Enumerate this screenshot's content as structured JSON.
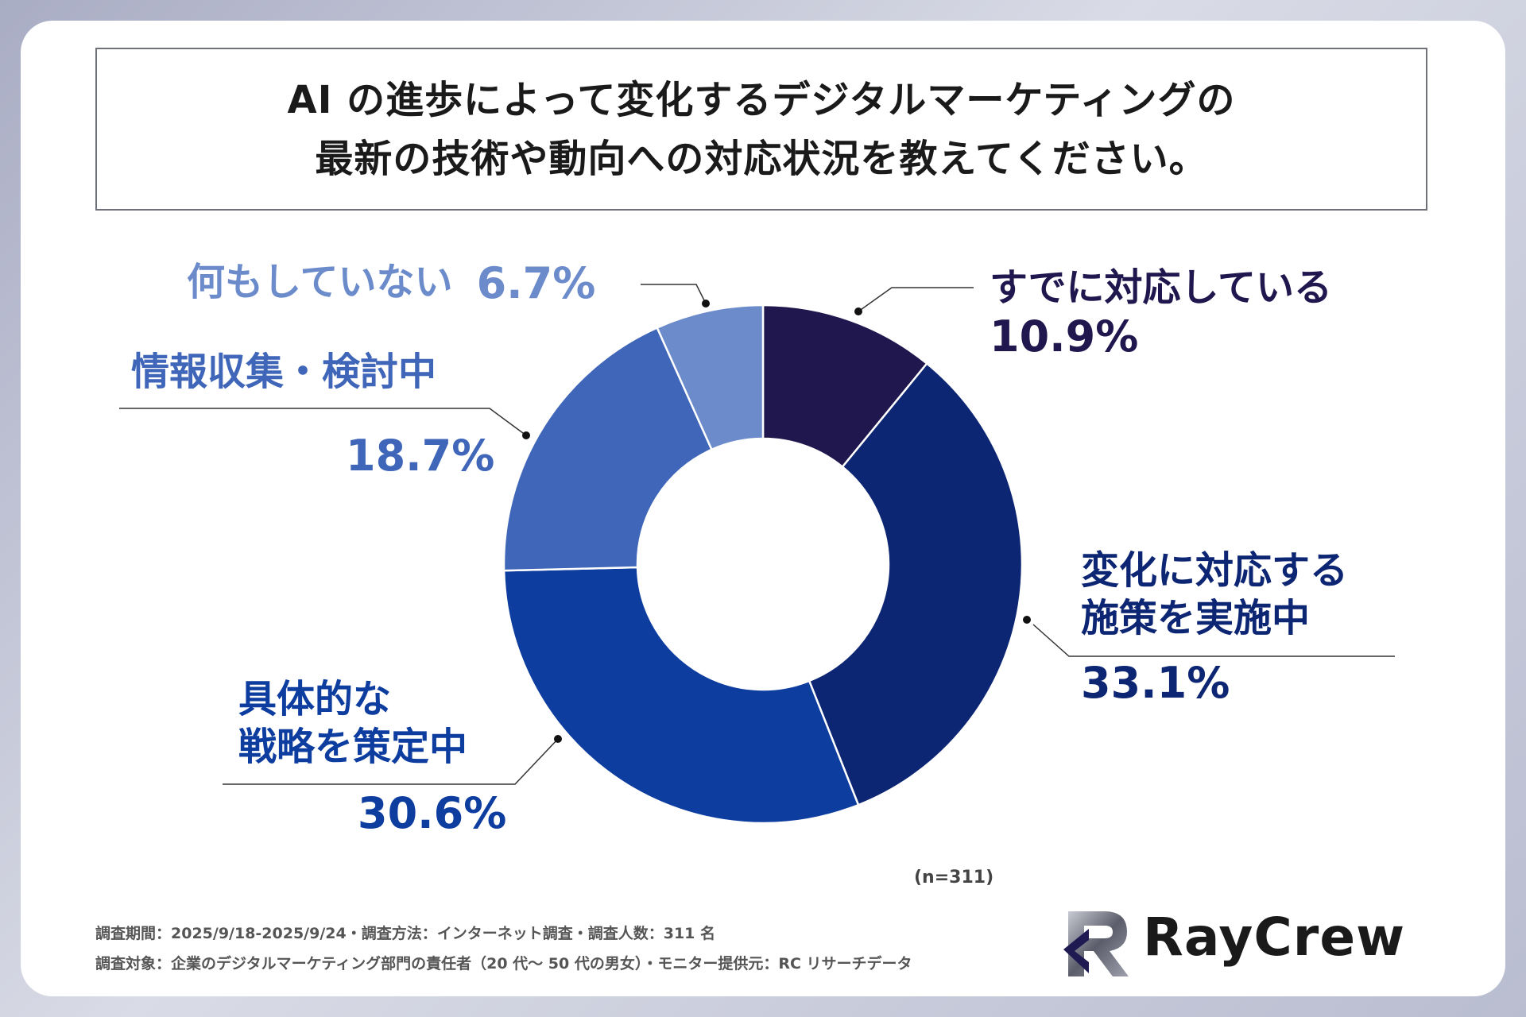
{
  "title": {
    "line1": "AI の進歩によって変化するデジタルマーケティングの",
    "line2": "最新の技術や動向への対応状況を教えてください。"
  },
  "chart_data": {
    "type": "pie",
    "variant": "donut",
    "categories": [
      "すでに対応している",
      "変化に対応する施策を実施中",
      "具体的な戦略を策定中",
      "情報収集・検討中",
      "何もしていない"
    ],
    "values": [
      10.9,
      33.1,
      30.6,
      18.7,
      6.7
    ],
    "labels_display": [
      {
        "lines": [
          "すでに対応している"
        ],
        "pct": "10.9%"
      },
      {
        "lines": [
          "変化に対応する",
          "施策を実施中"
        ],
        "pct": "33.1%"
      },
      {
        "lines": [
          "具体的な",
          "戦略を策定中"
        ],
        "pct": "30.6%"
      },
      {
        "lines": [
          "情報収集・検討中"
        ],
        "pct": "18.7%"
      },
      {
        "lines": [
          "何もしていない"
        ],
        "pct": "6.7%"
      }
    ],
    "colors": [
      "#1f174e",
      "#0d2674",
      "#0e3da0",
      "#3f66b8",
      "#6b8bcb"
    ],
    "note": "(n=311)"
  },
  "footer": {
    "line1": "調査期間：2025/9/18-2025/9/24・調査方法：インターネット調査・調査人数：311 名",
    "line2": "調査対象：企業のデジタルマーケティング部門の責任者（20 代〜 50 代の男女）・モニター提供元：RC リサーチデータ"
  },
  "logo": {
    "text": "RayCrew",
    "icon": "raycrew-logo-icon"
  }
}
